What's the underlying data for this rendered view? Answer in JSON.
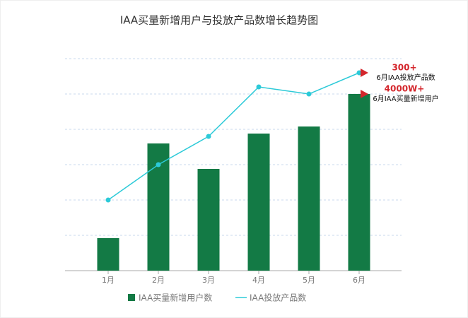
{
  "chart_data": {
    "type": "combo",
    "title": "IAA买量新增用户与投放产品数增长趋势图",
    "categories": [
      "1月",
      "2月",
      "3月",
      "4月",
      "5月",
      "6月"
    ],
    "series": [
      {
        "name": "IAA买量新增用户数",
        "type": "bar",
        "color": "#137a45",
        "values": [
          0.92,
          3.6,
          2.88,
          3.88,
          4.08,
          5.0
        ]
      },
      {
        "name": "IAA投放产品数",
        "type": "line",
        "color": "#2ccad8",
        "values": [
          2.0,
          3.0,
          3.8,
          5.2,
          5.0,
          5.6
        ]
      }
    ],
    "ylim": [
      0,
      6
    ],
    "yticks": [
      1,
      2,
      3,
      4,
      5,
      6
    ],
    "grid": true,
    "annotations": [
      {
        "value": "300+",
        "label": "6月IAA投放产品数"
      },
      {
        "value": "4000W+",
        "label": "6月IAA买量新增用户"
      }
    ],
    "annotation_color": "#d4262c"
  }
}
